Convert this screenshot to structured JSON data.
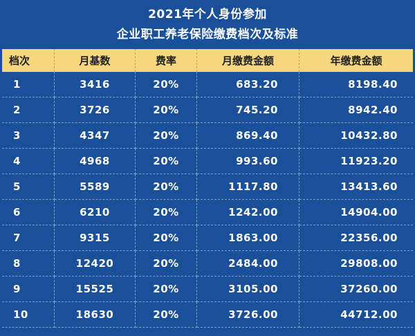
{
  "title": {
    "line1": "2021年个人身份参加",
    "line2": "企业职工养老保险缴费档次及标准"
  },
  "colors": {
    "background": "#1a4f9a",
    "header_bg": "#f6d77d",
    "text": "#ffffff"
  },
  "columns": [
    "档次",
    "月基数",
    "费率",
    "月缴费金额",
    "年缴费金额"
  ],
  "rows": [
    {
      "level": "1",
      "base": "3416",
      "rate": "20%",
      "monthly": "683.20",
      "yearly": "8198.40"
    },
    {
      "level": "2",
      "base": "3726",
      "rate": "20%",
      "monthly": "745.20",
      "yearly": "8942.40"
    },
    {
      "level": "3",
      "base": "4347",
      "rate": "20%",
      "monthly": "869.40",
      "yearly": "10432.80"
    },
    {
      "level": "4",
      "base": "4968",
      "rate": "20%",
      "monthly": "993.60",
      "yearly": "11923.20"
    },
    {
      "level": "5",
      "base": "5589",
      "rate": "20%",
      "monthly": "1117.80",
      "yearly": "13413.60"
    },
    {
      "level": "6",
      "base": "6210",
      "rate": "20%",
      "monthly": "1242.00",
      "yearly": "14904.00"
    },
    {
      "level": "7",
      "base": "9315",
      "rate": "20%",
      "monthly": "1863.00",
      "yearly": "22356.00"
    },
    {
      "level": "8",
      "base": "12420",
      "rate": "20%",
      "monthly": "2484.00",
      "yearly": "29808.00"
    },
    {
      "level": "9",
      "base": "15525",
      "rate": "20%",
      "monthly": "3105.00",
      "yearly": "37260.00"
    },
    {
      "level": "10",
      "base": "18630",
      "rate": "20%",
      "monthly": "3726.00",
      "yearly": "44712.00"
    }
  ]
}
